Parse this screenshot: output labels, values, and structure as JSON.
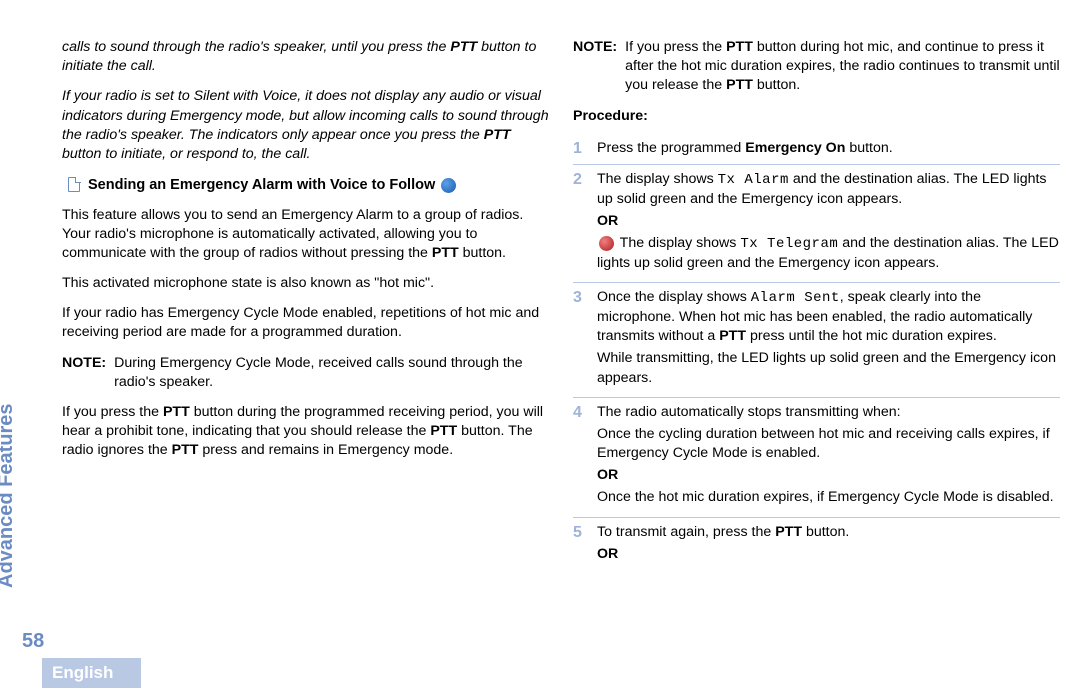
{
  "sidebar": {
    "section": "Advanced Features",
    "page_number": "58",
    "language": "English"
  },
  "colors": {
    "accent": "#6b8bc4",
    "tab_bg": "#b9c9e4",
    "tab_text": "#ffffff",
    "step_num": "#9db3d9",
    "divider": "#b9c9e4"
  },
  "left": {
    "intro1_a": "calls to sound through the radio's speaker, until you press the ",
    "intro1_ptt": "PTT",
    "intro1_b": " button to initiate the call.",
    "intro2_a": "If your radio is set to Silent with Voice, it does not display any audio or visual indicators during Emergency mode, but allow incoming calls to sound through the radio's speaker. The indicators only appear once you press the ",
    "intro2_ptt": "PTT",
    "intro2_b": " button to initiate, or respond to, the call.",
    "heading": "Sending an Emergency Alarm with Voice to Follow",
    "p1_a": "This feature allows you to send an Emergency Alarm to a group of radios. Your radio's microphone is automatically activated, allowing you to communicate with the group of radios without pressing the ",
    "p1_ptt": "PTT",
    "p1_b": " button.",
    "p2": "This activated microphone state is also known as \"hot mic\".",
    "p3": "If your radio has Emergency Cycle Mode enabled, repetitions of hot mic and receiving period are made for a programmed duration.",
    "note_label": "NOTE:",
    "note_body": "During Emergency Cycle Mode, received calls sound through the radio's speaker.",
    "p4_a": "If you press the ",
    "p4_ptt1": "PTT",
    "p4_b": " button during the programmed receiving period, you will hear a prohibit tone, indicating that you should release the ",
    "p4_ptt2": "PTT",
    "p4_c": " button. The radio ignores the ",
    "p4_ptt3": "PTT",
    "p4_d": " press and remains in Emergency mode."
  },
  "right": {
    "note_label": "NOTE:",
    "note_a": "If you press the ",
    "note_ptt1": "PTT",
    "note_b": " button during hot mic, and continue to press it after the hot mic duration expires, the radio continues to transmit until you release the ",
    "note_ptt2": "PTT",
    "note_c": " button.",
    "proc_label": "Procedure:",
    "steps": {
      "s1": {
        "num": "1",
        "a": "Press the programmed ",
        "b": "Emergency On",
        "c": " button."
      },
      "s2": {
        "num": "2",
        "l1a": "The display shows ",
        "l1mono": "Tx Alarm",
        "l1b": " and the destination alias. The LED lights up solid green and the Emergency icon appears.",
        "or": "OR",
        "l2a": " The display shows ",
        "l2mono": "Tx Telegram",
        "l2b": " and the destination alias. The LED lights up solid green and the Emergency icon appears."
      },
      "s3": {
        "num": "3",
        "l1a": "Once the display shows ",
        "l1mono": "Alarm Sent",
        "l1b": ", speak clearly into the microphone. When hot mic has been enabled, the radio automatically transmits without a ",
        "l1ptt": "PTT",
        "l1c": " press until the hot mic duration expires.",
        "l2": "While transmitting, the LED lights up solid green and the Emergency icon appears."
      },
      "s4": {
        "num": "4",
        "l1": "The radio automatically stops transmitting when:",
        "l2": "Once the cycling duration between hot mic and receiving calls expires, if Emergency Cycle Mode is enabled.",
        "or": "OR",
        "l3": "Once the hot mic duration expires, if Emergency Cycle Mode is disabled."
      },
      "s5": {
        "num": "5",
        "l1a": "To transmit again, press the ",
        "l1ptt": "PTT",
        "l1b": " button.",
        "or": "OR"
      }
    }
  }
}
